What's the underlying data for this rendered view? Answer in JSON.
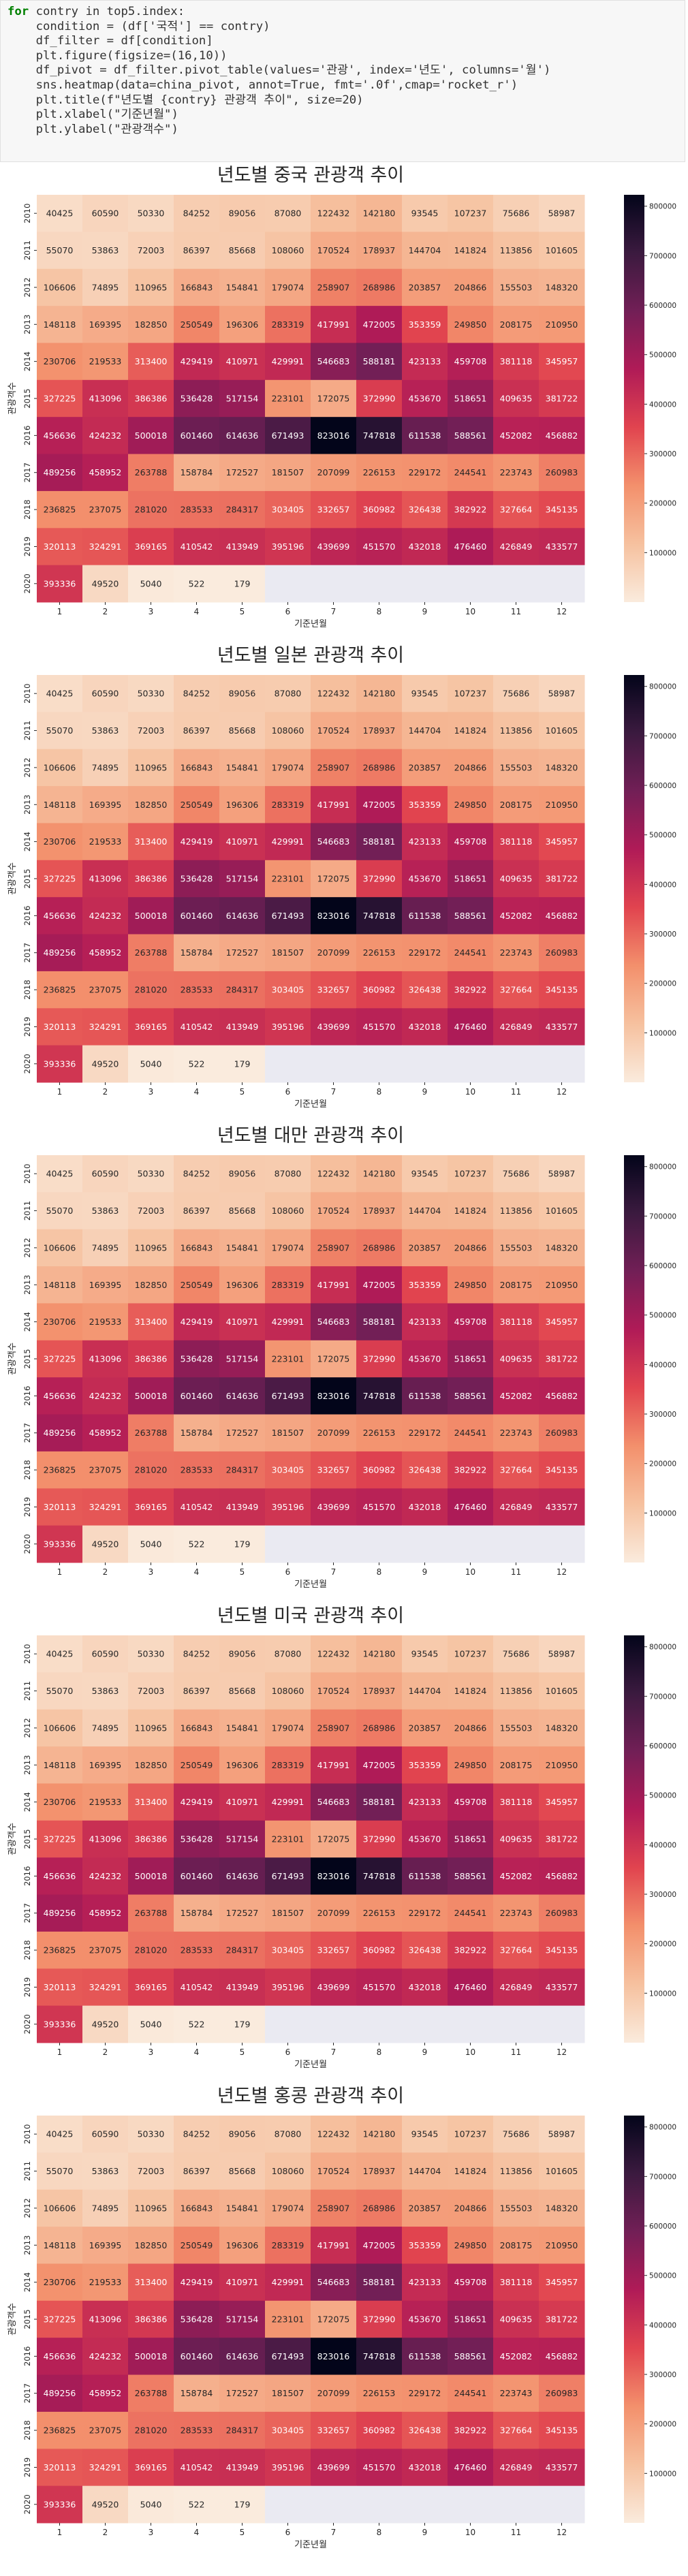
{
  "code_cell": {
    "lines": [
      "for contry in top5.index:",
      "    condition = (df['국적'] == contry)",
      "    df_filter = df[condition]",
      "",
      "    plt.figure(figsize=(16,10))",
      "",
      "    df_pivot = df_filter.pivot_table(values='관광', index='년도', columns='월')",
      "",
      "    sns.heatmap(data=china_pivot, annot=True, fmt='.0f',cmap='rocket_r')",
      "    plt.title(f\"년도별 {contry} 관광객 추이\", size=20)",
      "    plt.xlabel(\"기준년월\")",
      "    plt.ylabel(\"관광객수\")"
    ]
  },
  "colors": {
    "cmap_stops": [
      "#faebdd",
      "#f6c19f",
      "#f3906c",
      "#e1444f",
      "#b01b57",
      "#721f56",
      "#3b1a3f",
      "#03051a"
    ],
    "nan_fill": "#eaeaf2"
  },
  "chart_data": [
    {
      "type": "heatmap",
      "title": "년도별 중국 관광객 추이",
      "xlabel": "기준년월",
      "ylabel": "관광객수",
      "x": [
        "1",
        "2",
        "3",
        "4",
        "5",
        "6",
        "7",
        "8",
        "9",
        "10",
        "11",
        "12"
      ],
      "y": [
        "2010",
        "2011",
        "2012",
        "2013",
        "2014",
        "2015",
        "2016",
        "2017",
        "2018",
        "2019",
        "2020"
      ],
      "values": [
        [
          40425,
          60590,
          50330,
          84252,
          89056,
          87080,
          122432,
          142180,
          93545,
          107237,
          75686,
          58987
        ],
        [
          55070,
          53863,
          72003,
          86397,
          85668,
          108060,
          170524,
          178937,
          144704,
          141824,
          113856,
          101605
        ],
        [
          106606,
          74895,
          110965,
          166843,
          154841,
          179074,
          258907,
          268986,
          203857,
          204866,
          155503,
          148320
        ],
        [
          148118,
          169395,
          182850,
          250549,
          196306,
          283319,
          417991,
          472005,
          353359,
          249850,
          208175,
          210950
        ],
        [
          230706,
          219533,
          313400,
          429419,
          410971,
          429991,
          546683,
          588181,
          423133,
          459708,
          381118,
          345957
        ],
        [
          327225,
          413096,
          386386,
          536428,
          517154,
          223101,
          172075,
          372990,
          453670,
          518651,
          409635,
          381722
        ],
        [
          456636,
          424232,
          500018,
          601460,
          614636,
          671493,
          823016,
          747818,
          611538,
          588561,
          452082,
          456882
        ],
        [
          489256,
          458952,
          263788,
          158784,
          172527,
          181507,
          207099,
          226153,
          229172,
          244541,
          223743,
          260983
        ],
        [
          236825,
          237075,
          281020,
          283533,
          284317,
          303405,
          332657,
          360982,
          326438,
          382922,
          327664,
          345135
        ],
        [
          320113,
          324291,
          369165,
          410542,
          413949,
          395196,
          439699,
          451570,
          432018,
          476460,
          426849,
          433577
        ],
        [
          393336,
          49520,
          5040,
          522,
          179,
          null,
          null,
          null,
          null,
          null,
          null,
          null
        ]
      ],
      "colorbar": {
        "min": 0,
        "max": 823016,
        "ticks": [
          100000,
          200000,
          300000,
          400000,
          500000,
          600000,
          700000,
          800000
        ]
      }
    },
    {
      "type": "heatmap",
      "title": "년도별 일본 관광객 추이",
      "xlabel": "기준년월",
      "ylabel": "관광객수",
      "x": [
        "1",
        "2",
        "3",
        "4",
        "5",
        "6",
        "7",
        "8",
        "9",
        "10",
        "11",
        "12"
      ],
      "y": [
        "2010",
        "2011",
        "2012",
        "2013",
        "2014",
        "2015",
        "2016",
        "2017",
        "2018",
        "2019",
        "2020"
      ],
      "values": [
        [
          40425,
          60590,
          50330,
          84252,
          89056,
          87080,
          122432,
          142180,
          93545,
          107237,
          75686,
          58987
        ],
        [
          55070,
          53863,
          72003,
          86397,
          85668,
          108060,
          170524,
          178937,
          144704,
          141824,
          113856,
          101605
        ],
        [
          106606,
          74895,
          110965,
          166843,
          154841,
          179074,
          258907,
          268986,
          203857,
          204866,
          155503,
          148320
        ],
        [
          148118,
          169395,
          182850,
          250549,
          196306,
          283319,
          417991,
          472005,
          353359,
          249850,
          208175,
          210950
        ],
        [
          230706,
          219533,
          313400,
          429419,
          410971,
          429991,
          546683,
          588181,
          423133,
          459708,
          381118,
          345957
        ],
        [
          327225,
          413096,
          386386,
          536428,
          517154,
          223101,
          172075,
          372990,
          453670,
          518651,
          409635,
          381722
        ],
        [
          456636,
          424232,
          500018,
          601460,
          614636,
          671493,
          823016,
          747818,
          611538,
          588561,
          452082,
          456882
        ],
        [
          489256,
          458952,
          263788,
          158784,
          172527,
          181507,
          207099,
          226153,
          229172,
          244541,
          223743,
          260983
        ],
        [
          236825,
          237075,
          281020,
          283533,
          284317,
          303405,
          332657,
          360982,
          326438,
          382922,
          327664,
          345135
        ],
        [
          320113,
          324291,
          369165,
          410542,
          413949,
          395196,
          439699,
          451570,
          432018,
          476460,
          426849,
          433577
        ],
        [
          393336,
          49520,
          5040,
          522,
          179,
          null,
          null,
          null,
          null,
          null,
          null,
          null
        ]
      ],
      "colorbar": {
        "min": 0,
        "max": 823016,
        "ticks": [
          100000,
          200000,
          300000,
          400000,
          500000,
          600000,
          700000,
          800000
        ]
      }
    },
    {
      "type": "heatmap",
      "title": "년도별 대만 관광객 추이",
      "xlabel": "기준년월",
      "ylabel": "관광객수",
      "x": [
        "1",
        "2",
        "3",
        "4",
        "5",
        "6",
        "7",
        "8",
        "9",
        "10",
        "11",
        "12"
      ],
      "y": [
        "2010",
        "2011",
        "2012",
        "2013",
        "2014",
        "2015",
        "2016",
        "2017",
        "2018",
        "2019",
        "2020"
      ],
      "values": [
        [
          40425,
          60590,
          50330,
          84252,
          89056,
          87080,
          122432,
          142180,
          93545,
          107237,
          75686,
          58987
        ],
        [
          55070,
          53863,
          72003,
          86397,
          85668,
          108060,
          170524,
          178937,
          144704,
          141824,
          113856,
          101605
        ],
        [
          106606,
          74895,
          110965,
          166843,
          154841,
          179074,
          258907,
          268986,
          203857,
          204866,
          155503,
          148320
        ],
        [
          148118,
          169395,
          182850,
          250549,
          196306,
          283319,
          417991,
          472005,
          353359,
          249850,
          208175,
          210950
        ],
        [
          230706,
          219533,
          313400,
          429419,
          410971,
          429991,
          546683,
          588181,
          423133,
          459708,
          381118,
          345957
        ],
        [
          327225,
          413096,
          386386,
          536428,
          517154,
          223101,
          172075,
          372990,
          453670,
          518651,
          409635,
          381722
        ],
        [
          456636,
          424232,
          500018,
          601460,
          614636,
          671493,
          823016,
          747818,
          611538,
          588561,
          452082,
          456882
        ],
        [
          489256,
          458952,
          263788,
          158784,
          172527,
          181507,
          207099,
          226153,
          229172,
          244541,
          223743,
          260983
        ],
        [
          236825,
          237075,
          281020,
          283533,
          284317,
          303405,
          332657,
          360982,
          326438,
          382922,
          327664,
          345135
        ],
        [
          320113,
          324291,
          369165,
          410542,
          413949,
          395196,
          439699,
          451570,
          432018,
          476460,
          426849,
          433577
        ],
        [
          393336,
          49520,
          5040,
          522,
          179,
          null,
          null,
          null,
          null,
          null,
          null,
          null
        ]
      ],
      "colorbar": {
        "min": 0,
        "max": 823016,
        "ticks": [
          100000,
          200000,
          300000,
          400000,
          500000,
          600000,
          700000,
          800000
        ]
      }
    },
    {
      "type": "heatmap",
      "title": "년도별 미국 관광객 추이",
      "xlabel": "기준년월",
      "ylabel": "관광객수",
      "x": [
        "1",
        "2",
        "3",
        "4",
        "5",
        "6",
        "7",
        "8",
        "9",
        "10",
        "11",
        "12"
      ],
      "y": [
        "2010",
        "2011",
        "2012",
        "2013",
        "2014",
        "2015",
        "2016",
        "2017",
        "2018",
        "2019",
        "2020"
      ],
      "values": [
        [
          40425,
          60590,
          50330,
          84252,
          89056,
          87080,
          122432,
          142180,
          93545,
          107237,
          75686,
          58987
        ],
        [
          55070,
          53863,
          72003,
          86397,
          85668,
          108060,
          170524,
          178937,
          144704,
          141824,
          113856,
          101605
        ],
        [
          106606,
          74895,
          110965,
          166843,
          154841,
          179074,
          258907,
          268986,
          203857,
          204866,
          155503,
          148320
        ],
        [
          148118,
          169395,
          182850,
          250549,
          196306,
          283319,
          417991,
          472005,
          353359,
          249850,
          208175,
          210950
        ],
        [
          230706,
          219533,
          313400,
          429419,
          410971,
          429991,
          546683,
          588181,
          423133,
          459708,
          381118,
          345957
        ],
        [
          327225,
          413096,
          386386,
          536428,
          517154,
          223101,
          172075,
          372990,
          453670,
          518651,
          409635,
          381722
        ],
        [
          456636,
          424232,
          500018,
          601460,
          614636,
          671493,
          823016,
          747818,
          611538,
          588561,
          452082,
          456882
        ],
        [
          489256,
          458952,
          263788,
          158784,
          172527,
          181507,
          207099,
          226153,
          229172,
          244541,
          223743,
          260983
        ],
        [
          236825,
          237075,
          281020,
          283533,
          284317,
          303405,
          332657,
          360982,
          326438,
          382922,
          327664,
          345135
        ],
        [
          320113,
          324291,
          369165,
          410542,
          413949,
          395196,
          439699,
          451570,
          432018,
          476460,
          426849,
          433577
        ],
        [
          393336,
          49520,
          5040,
          522,
          179,
          null,
          null,
          null,
          null,
          null,
          null,
          null
        ]
      ],
      "colorbar": {
        "min": 0,
        "max": 823016,
        "ticks": [
          100000,
          200000,
          300000,
          400000,
          500000,
          600000,
          700000,
          800000
        ]
      }
    },
    {
      "type": "heatmap",
      "title": "년도별 홍콩 관광객 추이",
      "xlabel": "기준년월",
      "ylabel": "관광객수",
      "x": [
        "1",
        "2",
        "3",
        "4",
        "5",
        "6",
        "7",
        "8",
        "9",
        "10",
        "11",
        "12"
      ],
      "y": [
        "2010",
        "2011",
        "2012",
        "2013",
        "2014",
        "2015",
        "2016",
        "2017",
        "2018",
        "2019",
        "2020"
      ],
      "values": [
        [
          40425,
          60590,
          50330,
          84252,
          89056,
          87080,
          122432,
          142180,
          93545,
          107237,
          75686,
          58987
        ],
        [
          55070,
          53863,
          72003,
          86397,
          85668,
          108060,
          170524,
          178937,
          144704,
          141824,
          113856,
          101605
        ],
        [
          106606,
          74895,
          110965,
          166843,
          154841,
          179074,
          258907,
          268986,
          203857,
          204866,
          155503,
          148320
        ],
        [
          148118,
          169395,
          182850,
          250549,
          196306,
          283319,
          417991,
          472005,
          353359,
          249850,
          208175,
          210950
        ],
        [
          230706,
          219533,
          313400,
          429419,
          410971,
          429991,
          546683,
          588181,
          423133,
          459708,
          381118,
          345957
        ],
        [
          327225,
          413096,
          386386,
          536428,
          517154,
          223101,
          172075,
          372990,
          453670,
          518651,
          409635,
          381722
        ],
        [
          456636,
          424232,
          500018,
          601460,
          614636,
          671493,
          823016,
          747818,
          611538,
          588561,
          452082,
          456882
        ],
        [
          489256,
          458952,
          263788,
          158784,
          172527,
          181507,
          207099,
          226153,
          229172,
          244541,
          223743,
          260983
        ],
        [
          236825,
          237075,
          281020,
          283533,
          284317,
          303405,
          332657,
          360982,
          326438,
          382922,
          327664,
          345135
        ],
        [
          320113,
          324291,
          369165,
          410542,
          413949,
          395196,
          439699,
          451570,
          432018,
          476460,
          426849,
          433577
        ],
        [
          393336,
          49520,
          5040,
          522,
          179,
          null,
          null,
          null,
          null,
          null,
          null,
          null
        ]
      ],
      "colorbar": {
        "min": 0,
        "max": 823016,
        "ticks": [
          100000,
          200000,
          300000,
          400000,
          500000,
          600000,
          700000,
          800000
        ]
      }
    }
  ]
}
